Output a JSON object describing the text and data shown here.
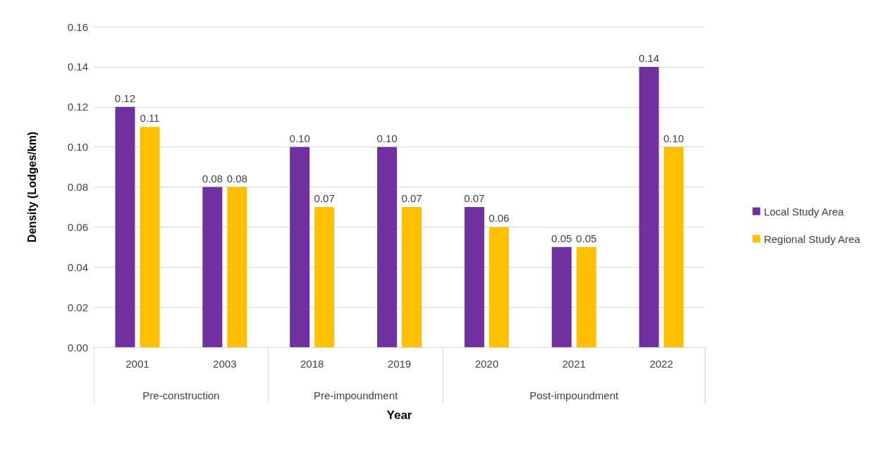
{
  "chart_data": {
    "type": "bar",
    "xlabel": "Year",
    "ylabel": "Density (Lodges/km)",
    "categories": [
      "2001",
      "2003",
      "2018",
      "2019",
      "2020",
      "2021",
      "2022"
    ],
    "series": [
      {
        "name": "Local Study Area",
        "color": "#7030a0",
        "values": [
          0.12,
          0.08,
          0.1,
          0.1,
          0.07,
          0.05,
          0.14
        ],
        "value_labels": [
          "0.12",
          "0.08",
          "0.10",
          "0.10",
          "0.07",
          "0.05",
          "0.14"
        ]
      },
      {
        "name": "Regional Study Area",
        "color": "#ffc000",
        "values": [
          0.11,
          0.08,
          0.07,
          0.07,
          0.06,
          0.05,
          0.1
        ],
        "value_labels": [
          "0.11",
          "0.08",
          "0.07",
          "0.07",
          "0.06",
          "0.05",
          "0.10"
        ]
      }
    ],
    "annotations": [
      "Pre-construction",
      "Pre-impoundment",
      "Post-impoundment"
    ],
    "ylim": [
      0,
      0.16
    ],
    "yticks": [
      {
        "value": 0,
        "label": "0.00"
      },
      0.02,
      0.04,
      0.06,
      0.08,
      {
        "value": 0.1,
        "label": "0.10"
      },
      0.12,
      0.14,
      0.16
    ],
    "grid": "y",
    "legend": "right"
  }
}
